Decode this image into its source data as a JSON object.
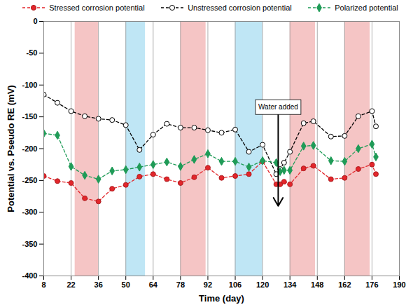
{
  "chart_data": {
    "type": "line",
    "x_label": "Time (day)",
    "y_label": "Potential vs. Pseudo RE (mV)",
    "xlim": [
      8,
      190
    ],
    "xticks": [
      8,
      22,
      36,
      50,
      64,
      78,
      92,
      106,
      120,
      134,
      148,
      162,
      176,
      190
    ],
    "ylim": [
      -400,
      0
    ],
    "yticks": [
      -400,
      -350,
      -300,
      -250,
      -200,
      -150,
      -100,
      -50,
      0
    ],
    "grid": "x",
    "legend": "top",
    "x": [
      8,
      15,
      22,
      29,
      36,
      43,
      50,
      57,
      64,
      71,
      78,
      85,
      92,
      99,
      106,
      113,
      120,
      127,
      129,
      131,
      134,
      141,
      146,
      155,
      162,
      169,
      176,
      178
    ],
    "series": [
      {
        "name": "Stressed corrosion potential",
        "color": "#e3262b",
        "marker": "circle",
        "line_style": "dashed",
        "values": [
          -243,
          -251,
          -254,
          -278,
          -283,
          -263,
          -257,
          -244,
          -240,
          -248,
          -254,
          -245,
          -230,
          -246,
          -243,
          -240,
          -220,
          -256,
          -256,
          -252,
          -256,
          -231,
          -227,
          -248,
          -246,
          -232,
          -225,
          -240
        ]
      },
      {
        "name": "Unstressed corrosion potential",
        "color": "#000000",
        "marker": "circle-open",
        "line_style": "dashed",
        "values": [
          -115,
          -128,
          -141,
          -149,
          -153,
          -155,
          -163,
          -202,
          -178,
          -161,
          -167,
          -167,
          -171,
          -175,
          -170,
          -205,
          -194,
          -240,
          -232,
          -222,
          -205,
          -160,
          -157,
          -181,
          -180,
          -149,
          -141,
          -165
        ]
      },
      {
        "name": "Polarized potential",
        "color": "#1f9b57",
        "marker": "diamond",
        "line_style": "dashed",
        "values": [
          -176,
          -179,
          -228,
          -242,
          -248,
          -235,
          -233,
          -229,
          -225,
          -221,
          -228,
          -217,
          -208,
          -220,
          -220,
          -229,
          -219,
          -222,
          -236,
          -234,
          -234,
          -196,
          -195,
          -219,
          -220,
          -200,
          -193,
          -213
        ]
      }
    ],
    "bands": [
      {
        "x1": 24,
        "x2": 36,
        "color": "#f5c5c5"
      },
      {
        "x1": 50,
        "x2": 60,
        "color": "#bfe6f5"
      },
      {
        "x1": 78,
        "x2": 91,
        "color": "#f5c5c5"
      },
      {
        "x1": 106,
        "x2": 120,
        "color": "#bfe6f5"
      },
      {
        "x1": 134,
        "x2": 147,
        "color": "#f5c5c5"
      },
      {
        "x1": 162,
        "x2": 175,
        "color": "#f5c5c5"
      }
    ],
    "annotations": [
      {
        "text": "Water added",
        "x": 128,
        "y": -135,
        "arrow_to": -290
      }
    ]
  }
}
